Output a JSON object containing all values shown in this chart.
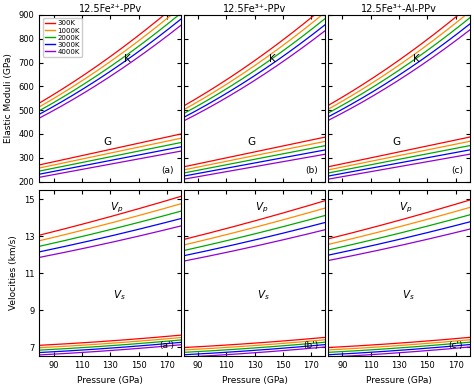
{
  "col_titles": [
    "12.5Fe²⁺-PPv",
    "12.5Fe³⁺-PPv",
    "12.5Fe³⁺-Al-PPv"
  ],
  "temperatures": [
    "300K",
    "1000K",
    "2000K",
    "3000K",
    "4000K"
  ],
  "colors": [
    "#FF0000",
    "#FF8C00",
    "#00AA00",
    "#0000FF",
    "#9400D3"
  ],
  "xlim": [
    80,
    180
  ],
  "xticks": [
    90,
    110,
    130,
    150,
    170
  ],
  "K_ylim": [
    200,
    900
  ],
  "K_yticks": [
    200,
    300,
    400,
    500,
    600,
    700,
    800,
    900
  ],
  "V_ylim": [
    6.5,
    15.5
  ],
  "V_yticks": [
    7,
    9,
    11,
    13,
    15
  ],
  "xlabel": "Pressure (GPa)",
  "ylabel_top": "Elastic Moduli (GPa)",
  "ylabel_bot": "Velocities (km/s)",
  "panel_labels_top": [
    "(a)",
    "(b)",
    "(c)"
  ],
  "panel_labels_bot": [
    "(a')",
    "(b')",
    "(c')"
  ],
  "K_params": [
    [
      [
        530,
        3.5,
        0.008
      ],
      [
        514,
        3.4,
        0.008
      ],
      [
        498,
        3.3,
        0.008
      ],
      [
        483,
        3.2,
        0.008
      ],
      [
        467,
        3.1,
        0.008
      ]
    ],
    [
      [
        518,
        3.4,
        0.008
      ],
      [
        502,
        3.3,
        0.008
      ],
      [
        486,
        3.2,
        0.008
      ],
      [
        470,
        3.1,
        0.008
      ],
      [
        455,
        3.0,
        0.008
      ]
    ],
    [
      [
        520,
        3.4,
        0.008
      ],
      [
        504,
        3.3,
        0.008
      ],
      [
        488,
        3.2,
        0.008
      ],
      [
        472,
        3.1,
        0.008
      ],
      [
        457,
        3.0,
        0.008
      ]
    ]
  ],
  "G_params": [
    [
      [
        270,
        1.3,
        0.0
      ],
      [
        257,
        1.25,
        0.0
      ],
      [
        244,
        1.2,
        0.0
      ],
      [
        231,
        1.15,
        0.0
      ],
      [
        218,
        1.1,
        0.0
      ]
    ],
    [
      [
        262,
        1.25,
        0.0
      ],
      [
        249,
        1.2,
        0.0
      ],
      [
        236,
        1.15,
        0.0
      ],
      [
        223,
        1.1,
        0.0
      ],
      [
        210,
        1.05,
        0.0
      ]
    ],
    [
      [
        262,
        1.25,
        0.0
      ],
      [
        249,
        1.2,
        0.0
      ],
      [
        236,
        1.15,
        0.0
      ],
      [
        223,
        1.1,
        0.0
      ],
      [
        210,
        1.05,
        0.0
      ]
    ]
  ],
  "Vp_params": [
    [
      [
        13.05,
        0.019,
        2e-05
      ],
      [
        12.75,
        0.018,
        2e-05
      ],
      [
        12.45,
        0.017,
        2e-05
      ],
      [
        12.15,
        0.016,
        2e-05
      ],
      [
        11.85,
        0.015,
        2e-05
      ]
    ],
    [
      [
        12.82,
        0.019,
        2e-05
      ],
      [
        12.52,
        0.018,
        2e-05
      ],
      [
        12.22,
        0.017,
        2e-05
      ],
      [
        11.94,
        0.016,
        2e-05
      ],
      [
        11.65,
        0.015,
        2e-05
      ]
    ],
    [
      [
        12.85,
        0.019,
        2e-05
      ],
      [
        12.55,
        0.018,
        2e-05
      ],
      [
        12.25,
        0.017,
        2e-05
      ],
      [
        11.97,
        0.016,
        2e-05
      ],
      [
        11.68,
        0.015,
        2e-05
      ]
    ]
  ],
  "Vs_params": [
    [
      [
        7.1,
        0.004,
        1.5e-05
      ],
      [
        6.97,
        0.004,
        1.5e-05
      ],
      [
        6.84,
        0.004,
        1.5e-05
      ],
      [
        6.71,
        0.004,
        1.5e-05
      ],
      [
        6.58,
        0.004,
        1.5e-05
      ]
    ],
    [
      [
        6.98,
        0.004,
        1.5e-05
      ],
      [
        6.85,
        0.004,
        1.5e-05
      ],
      [
        6.72,
        0.004,
        1.5e-05
      ],
      [
        6.59,
        0.004,
        1.5e-05
      ],
      [
        6.46,
        0.004,
        1.5e-05
      ]
    ],
    [
      [
        6.98,
        0.004,
        1.5e-05
      ],
      [
        6.85,
        0.004,
        1.5e-05
      ],
      [
        6.72,
        0.004,
        1.5e-05
      ],
      [
        6.59,
        0.004,
        1.5e-05
      ],
      [
        6.46,
        0.004,
        1.5e-05
      ]
    ]
  ]
}
